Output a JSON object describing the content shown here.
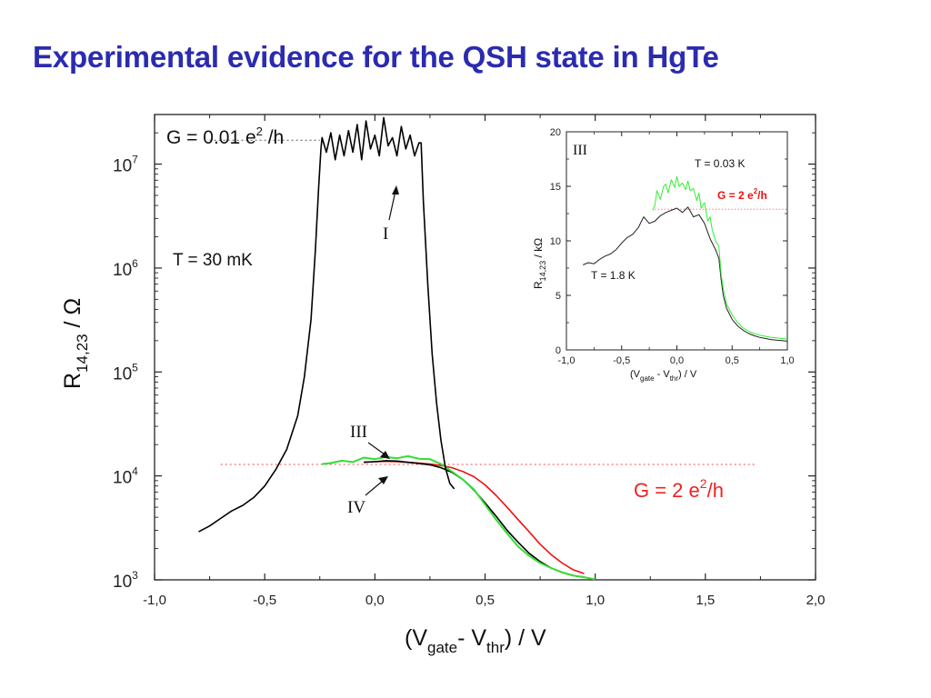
{
  "slide": {
    "title": "Experimental evidence for the QSH state in HgTe"
  },
  "chart_data": [
    {
      "type": "line",
      "y_scale": "log",
      "xlim": [
        -1.0,
        2.0
      ],
      "ylim": [
        1000,
        30000000
      ],
      "x_ticks": [
        "-1,0",
        "-0,5",
        "0,0",
        "0,5",
        "1,0",
        "1,5",
        "2,0"
      ],
      "y_ticks": [
        {
          "base": "10",
          "exp": "3"
        },
        {
          "base": "10",
          "exp": "4"
        },
        {
          "base": "10",
          "exp": "5"
        },
        {
          "base": "10",
          "exp": "6"
        },
        {
          "base": "10",
          "exp": "7"
        }
      ],
      "xlabel": {
        "p1": "(V",
        "sub1": "gate",
        "p2": "- V",
        "sub2": "thr",
        "p3": ") / V"
      },
      "ylabel": {
        "main": "R",
        "sub": "14,23",
        "tail": " / Ω"
      },
      "annotations": {
        "top_g": {
          "p1": "G = 0.01 e",
          "sup": "2",
          "p2": " /h"
        },
        "temp": "T = 30 mK",
        "bottom_g": {
          "p1": "G = 2 e",
          "sup": "2",
          "p2": "/h"
        },
        "label_I": "I",
        "label_III": "III",
        "label_IV": "IV"
      },
      "reference_lines": [
        {
          "y": 17000000,
          "x_range": [
            -0.75,
            -0.25
          ],
          "color": "#555555"
        },
        {
          "y": 12900,
          "x_range": [
            -0.7,
            1.73
          ],
          "color": "#ff4444"
        }
      ],
      "series": [
        {
          "id": "I",
          "color": "#000000",
          "x": [
            -0.8,
            -0.75,
            -0.7,
            -0.65,
            -0.6,
            -0.55,
            -0.5,
            -0.45,
            -0.4,
            -0.35,
            -0.32,
            -0.29,
            -0.27,
            -0.255,
            -0.245,
            -0.24,
            -0.22,
            -0.2,
            -0.18,
            -0.16,
            -0.14,
            -0.12,
            -0.1,
            -0.08,
            -0.06,
            -0.04,
            -0.02,
            0.0,
            0.02,
            0.04,
            0.06,
            0.08,
            0.1,
            0.12,
            0.14,
            0.16,
            0.18,
            0.2,
            0.21,
            0.22,
            0.24,
            0.26,
            0.28,
            0.3,
            0.32,
            0.34,
            0.36
          ],
          "y": [
            2900,
            3300,
            3900,
            4600,
            5200,
            6200,
            8000,
            11500,
            18000,
            38000,
            90000,
            320000,
            1500000,
            6000000,
            14000000,
            18000000,
            13000000,
            20000000,
            11000000,
            19000000,
            12000000,
            21000000,
            13000000,
            24000000,
            11000000,
            26000000,
            14000000,
            19000000,
            12000000,
            28000000,
            15000000,
            18000000,
            12000000,
            23000000,
            14000000,
            19000000,
            12000000,
            16000000,
            16000000,
            4500000,
            700000,
            150000,
            50000,
            22000,
            12000,
            8500,
            7500
          ]
        },
        {
          "id": "III",
          "color": "#33dd33",
          "x": [
            -0.24,
            -0.2,
            -0.15,
            -0.1,
            -0.05,
            0.0,
            0.05,
            0.1,
            0.15,
            0.2,
            0.25,
            0.3,
            0.35,
            0.4,
            0.45,
            0.5,
            0.55,
            0.6,
            0.65,
            0.7,
            0.75,
            0.8,
            0.85,
            0.9,
            0.95,
            1.0
          ],
          "y": [
            13000,
            13300,
            14000,
            13600,
            15000,
            14500,
            15200,
            14800,
            15500,
            14600,
            14500,
            13000,
            11000,
            9200,
            7400,
            5300,
            3800,
            2800,
            2100,
            1700,
            1450,
            1300,
            1180,
            1100,
            1060,
            1010
          ]
        },
        {
          "id": "IV",
          "color": "#000000",
          "x": [
            -0.05,
            0.0,
            0.05,
            0.1,
            0.15,
            0.2,
            0.25,
            0.3,
            0.35,
            0.4,
            0.45,
            0.5,
            0.55,
            0.6,
            0.65,
            0.7,
            0.75,
            0.8,
            0.85,
            0.9,
            0.95
          ],
          "y": [
            13500,
            13700,
            14000,
            13900,
            13500,
            13200,
            12800,
            12000,
            10800,
            9200,
            7300,
            5500,
            4100,
            3000,
            2300,
            1800,
            1500,
            1300,
            1180,
            1100,
            1060
          ]
        },
        {
          "id": "red",
          "color": "#ee1111",
          "x": [
            -0.05,
            0.0,
            0.05,
            0.1,
            0.15,
            0.2,
            0.25,
            0.3,
            0.35,
            0.4,
            0.45,
            0.5,
            0.55,
            0.6,
            0.65,
            0.7,
            0.75,
            0.8,
            0.85,
            0.9,
            0.95
          ],
          "y": [
            13600,
            13700,
            13800,
            13700,
            13500,
            13300,
            13000,
            12600,
            12000,
            11000,
            9800,
            8200,
            6500,
            5000,
            3800,
            2900,
            2200,
            1750,
            1450,
            1250,
            1150
          ]
        }
      ]
    },
    {
      "type": "line",
      "panel_label": "III",
      "xlim": [
        -1.0,
        1.0
      ],
      "ylim": [
        0,
        20
      ],
      "x_ticks": [
        "-1,0",
        "-0,5",
        "0,0",
        "0,5",
        "1,0"
      ],
      "y_ticks": [
        "0",
        "5",
        "10",
        "15",
        "20"
      ],
      "xlabel": {
        "p1": "(V",
        "sub1": "gate",
        "p2": " - V",
        "sub2": "thr",
        "p3": ") / V"
      },
      "ylabel": {
        "main": "R",
        "sub": "14,23",
        "tail": " / kΩ"
      },
      "annotations": {
        "t_low": "T = 0.03 K",
        "g_label": {
          "p1": "G = 2 e",
          "sup": "2",
          "p2": "/h"
        },
        "t_high": "T = 1.8 K"
      },
      "reference_lines": [
        {
          "y": 12.9,
          "x_range": [
            -0.2,
            1.0
          ],
          "color": "#ff6666"
        }
      ],
      "series": [
        {
          "name": "T = 1.8 K",
          "color": "#222222",
          "x": [
            -0.85,
            -0.8,
            -0.75,
            -0.7,
            -0.65,
            -0.6,
            -0.55,
            -0.5,
            -0.45,
            -0.4,
            -0.35,
            -0.3,
            -0.25,
            -0.2,
            -0.15,
            -0.1,
            -0.05,
            0.0,
            0.05,
            0.1,
            0.15,
            0.2,
            0.25,
            0.3,
            0.35,
            0.38,
            0.4,
            0.42,
            0.45,
            0.5,
            0.55,
            0.6,
            0.65,
            0.7,
            0.75,
            0.8,
            0.85,
            0.9,
            0.95,
            1.0
          ],
          "y": [
            7.8,
            8.0,
            7.9,
            8.3,
            8.6,
            8.8,
            9.2,
            9.8,
            10.3,
            10.6,
            11.2,
            12.2,
            11.6,
            11.8,
            12.3,
            12.6,
            12.8,
            13.0,
            12.6,
            13.1,
            12.2,
            12.4,
            11.6,
            10.2,
            9.2,
            8.4,
            6.5,
            5.0,
            3.8,
            2.8,
            2.2,
            1.8,
            1.5,
            1.3,
            1.15,
            1.05,
            0.95,
            0.9,
            0.85,
            0.8
          ]
        },
        {
          "name": "T = 0.03 K",
          "color": "#33ee33",
          "x": [
            -0.22,
            -0.2,
            -0.18,
            -0.15,
            -0.12,
            -0.1,
            -0.08,
            -0.05,
            -0.02,
            0.0,
            0.02,
            0.05,
            0.08,
            0.1,
            0.12,
            0.15,
            0.18,
            0.2,
            0.22,
            0.25,
            0.28,
            0.3,
            0.32,
            0.35,
            0.38,
            0.4,
            0.42,
            0.45,
            0.5,
            0.55,
            0.6,
            0.65,
            0.7,
            0.75,
            0.8,
            0.85,
            0.9,
            0.95,
            1.0
          ],
          "y": [
            12.8,
            13.2,
            14.6,
            13.8,
            15.0,
            15.2,
            14.4,
            15.6,
            14.9,
            15.9,
            15.0,
            15.3,
            14.7,
            15.5,
            14.6,
            14.8,
            13.7,
            14.4,
            13.0,
            13.5,
            11.8,
            12.2,
            11.0,
            10.0,
            9.5,
            7.0,
            5.6,
            4.2,
            3.2,
            2.5,
            2.0,
            1.7,
            1.5,
            1.35,
            1.25,
            1.15,
            1.1,
            1.05,
            1.0
          ]
        }
      ]
    }
  ]
}
